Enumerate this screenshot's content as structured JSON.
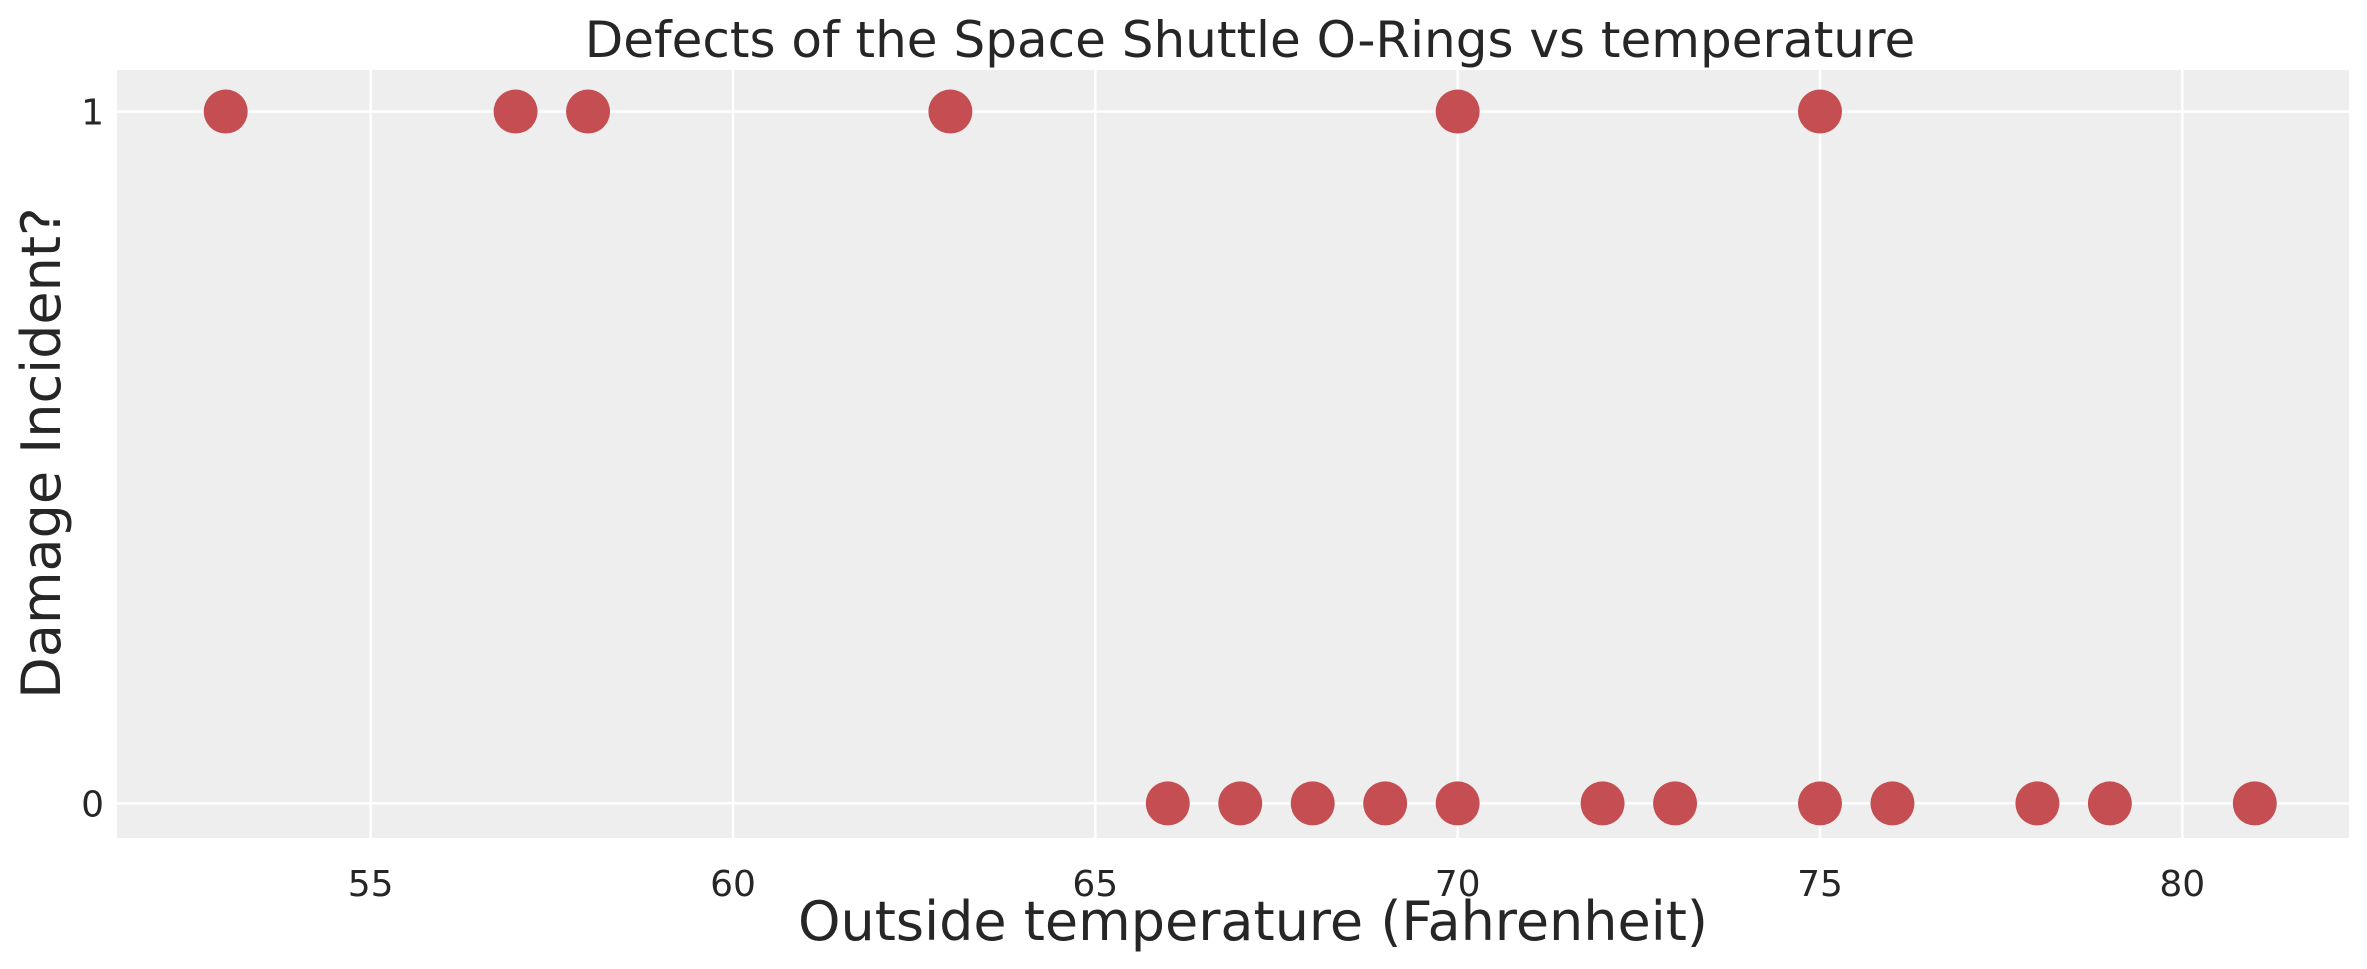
{
  "chart_data": {
    "type": "scatter",
    "title": "Defects of the Space Shuttle O-Rings vs temperature",
    "xlabel": "Outside temperature (Fahrenheit)",
    "ylabel": "Damage Incident?",
    "xlim": [
      51.5,
      82.3
    ],
    "ylim": [
      -0.05,
      1.06
    ],
    "x_ticks": [
      55,
      60,
      65,
      70,
      75,
      80
    ],
    "y_ticks": [
      0,
      1
    ],
    "grid": true,
    "colors": {
      "points": "#c44e52",
      "plot_background": "#eeeeee",
      "grid": "#ffffff",
      "text": "#262626"
    },
    "points": [
      {
        "x": 53,
        "y": 1
      },
      {
        "x": 57,
        "y": 1
      },
      {
        "x": 58,
        "y": 1
      },
      {
        "x": 63,
        "y": 1
      },
      {
        "x": 70,
        "y": 1
      },
      {
        "x": 75,
        "y": 1
      },
      {
        "x": 66,
        "y": 0
      },
      {
        "x": 67,
        "y": 0
      },
      {
        "x": 68,
        "y": 0
      },
      {
        "x": 69,
        "y": 0
      },
      {
        "x": 70,
        "y": 0
      },
      {
        "x": 72,
        "y": 0
      },
      {
        "x": 73,
        "y": 0
      },
      {
        "x": 75,
        "y": 0
      },
      {
        "x": 76,
        "y": 0
      },
      {
        "x": 78,
        "y": 0
      },
      {
        "x": 79,
        "y": 0
      },
      {
        "x": 81,
        "y": 0
      }
    ]
  }
}
